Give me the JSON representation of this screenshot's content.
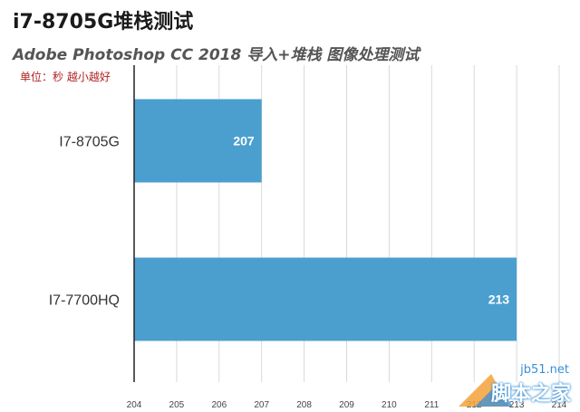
{
  "page": {
    "title": "i7-8705G堆栈测试",
    "subtitle": "Adobe Photoshop CC 2018 导入+堆栈 图像处理测试",
    "unit_note": "单位：秒 越小越好"
  },
  "watermark": {
    "url": "jb51.net",
    "site_name": "脚本之家"
  },
  "chart_data": {
    "type": "bar",
    "orientation": "horizontal",
    "categories": [
      "I7-8705G",
      "I7-7700HQ"
    ],
    "values": [
      207,
      213
    ],
    "data_labels": [
      "207",
      "213"
    ],
    "title": "i7-8705G堆栈测试",
    "subtitle": "Adobe Photoshop CC 2018 导入+堆栈 图像处理测试",
    "xlabel": "",
    "ylabel": "",
    "xlim": [
      204,
      214
    ],
    "xticks": [
      204,
      205,
      206,
      207,
      208,
      209,
      210,
      211,
      212,
      213,
      214
    ],
    "grid": true,
    "legend": "none",
    "bar_color": "#4a9fcf",
    "label_color": "#ffffff"
  }
}
